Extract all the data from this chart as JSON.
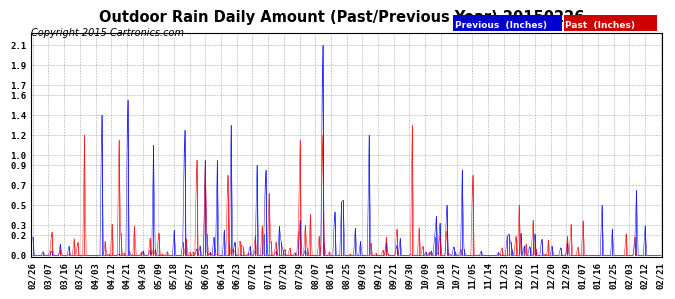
{
  "title": "Outdoor Rain Daily Amount (Past/Previous Year) 20150226",
  "copyright": "Copyright 2015 Cartronics.com",
  "legend_prev_label": "Previous  (Inches)",
  "legend_past_label": "Past  (Inches)",
  "legend_prev_bg": "#0000CC",
  "legend_past_bg": "#CC0000",
  "line_prev_color": "#0000FF",
  "line_past_color": "#FF0000",
  "bg_color": "#FFFFFF",
  "grid_color": "#AAAAAA",
  "yticks": [
    0.0,
    0.2,
    0.3,
    0.5,
    0.7,
    0.9,
    1.0,
    1.2,
    1.4,
    1.6,
    1.7,
    1.9,
    2.1
  ],
  "ymin": -0.02,
  "ymax": 2.22,
  "title_fontsize": 10.5,
  "copyright_fontsize": 7,
  "tick_fontsize": 6.5
}
